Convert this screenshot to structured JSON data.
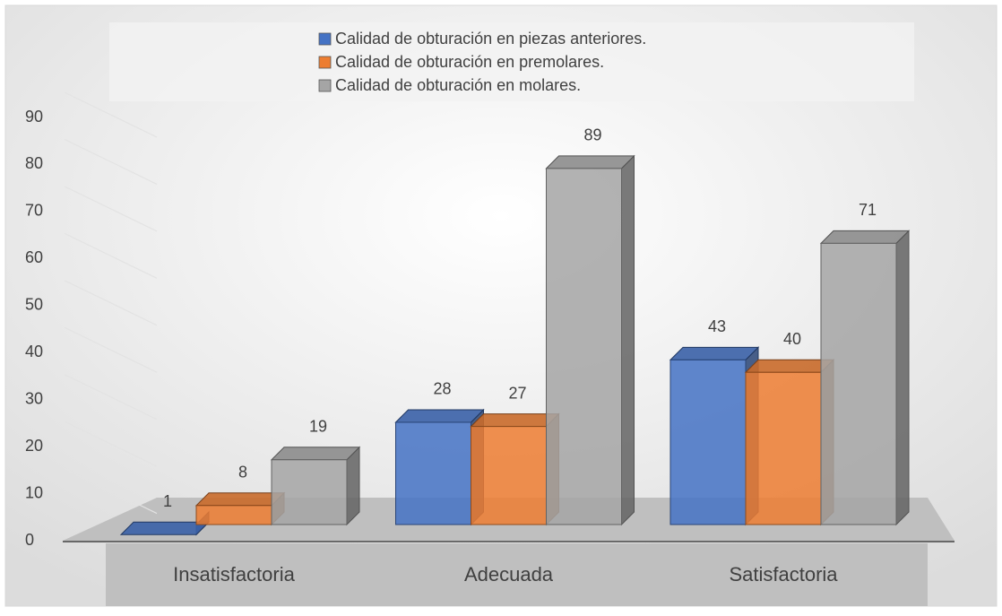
{
  "chart_data": {
    "type": "bar3d",
    "categories": [
      "Insatisfactoria",
      "Adecuada",
      "Satisfactoria"
    ],
    "series": [
      {
        "name": "Calidad de obturación en piezas anteriores.",
        "color": "#4472c4",
        "values": [
          1,
          28,
          43
        ]
      },
      {
        "name": "Calidad de obturación en premolares.",
        "color": "#ed7d31",
        "values": [
          8,
          27,
          40
        ]
      },
      {
        "name": "Calidad de obturación en molares.",
        "color": "#a5a5a5",
        "values": [
          19,
          89,
          71
        ]
      }
    ],
    "ylim": [
      0,
      90
    ],
    "yticks": [
      0,
      10,
      20,
      30,
      40,
      50,
      60,
      70,
      80,
      90
    ],
    "grid": true,
    "legend": "top"
  }
}
